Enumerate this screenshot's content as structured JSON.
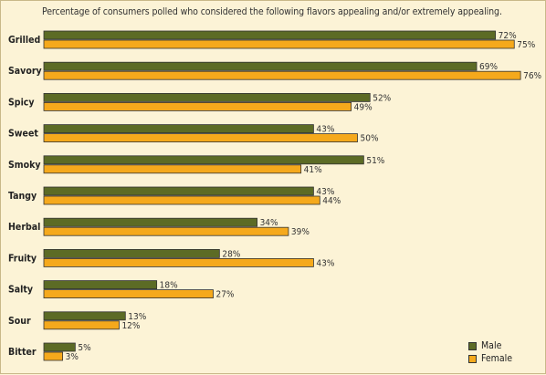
{
  "chart_data": {
    "type": "bar",
    "orientation": "horizontal",
    "title": "Percentage of consumers polled who considered the following flavors appealing and/or extremely appealing.",
    "categories": [
      "Grilled",
      "Savory",
      "Spicy",
      "Sweet",
      "Smoky",
      "Tangy",
      "Herbal",
      "Fruity",
      "Salty",
      "Sour",
      "Bitter"
    ],
    "series": [
      {
        "name": "Male",
        "values": [
          72,
          69,
          52,
          43,
          51,
          43,
          34,
          28,
          18,
          13,
          5
        ],
        "color": "#5c6b25"
      },
      {
        "name": "Female",
        "values": [
          75,
          76,
          49,
          50,
          41,
          44,
          39,
          43,
          27,
          12,
          3
        ],
        "color": "#f5a91c"
      }
    ],
    "value_suffix": "%",
    "xlim": [
      0,
      100
    ],
    "grid": false,
    "legend_position": "bottom-right"
  }
}
